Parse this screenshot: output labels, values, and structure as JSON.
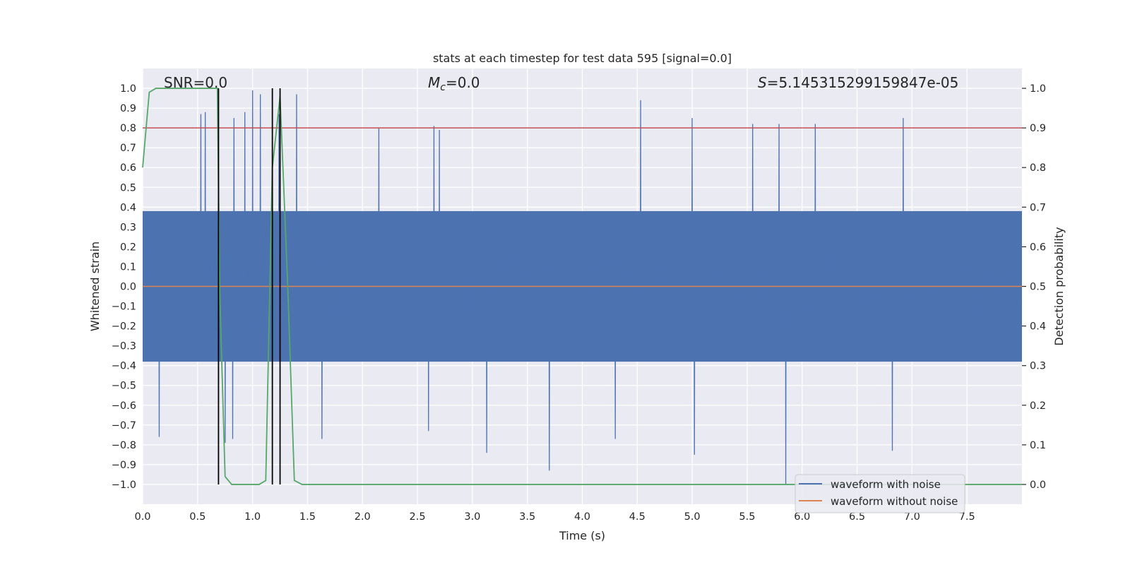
{
  "chart_data": {
    "type": "line",
    "title": "stats at each timestep for test data 595 [signal=0.0]",
    "xlabel": "Time (s)",
    "ylabel_left": "Whitened strain",
    "ylabel_right": "Detection probability",
    "xlim": [
      0.0,
      8.0
    ],
    "ylim_left": [
      -1.1,
      1.1
    ],
    "ylim_right": [
      -0.05,
      1.05
    ],
    "xticks": [
      "0.0",
      "0.5",
      "1.0",
      "1.5",
      "2.0",
      "2.5",
      "3.0",
      "3.5",
      "4.0",
      "4.5",
      "5.0",
      "5.5",
      "6.0",
      "6.5",
      "7.0",
      "7.5"
    ],
    "yticks_left": [
      "1.0",
      "0.9",
      "0.8",
      "0.7",
      "0.6",
      "0.5",
      "0.4",
      "0.3",
      "0.2",
      "0.1",
      "0.0",
      "−0.1",
      "−0.2",
      "−0.3",
      "−0.4",
      "−0.5",
      "−0.6",
      "−0.7",
      "−0.8",
      "−0.9",
      "−1.0"
    ],
    "yticks_right": [
      "1.0",
      "0.9",
      "0.8",
      "0.7",
      "0.6",
      "0.5",
      "0.4",
      "0.3",
      "0.2",
      "0.1",
      "0.0"
    ],
    "annotations": {
      "snr": "SNR=0.0",
      "mc_symbol": "M",
      "mc_sub": "c",
      "mc_value": "=0.0",
      "s_symbol": "S",
      "s_value": "=5.145315299159847e-05"
    },
    "threshold": {
      "value_right": 0.9,
      "color": "#c44e52"
    },
    "vertical_lines_x": [
      0.69,
      1.18,
      1.25
    ],
    "detection_probability": {
      "name": "detection probability",
      "color": "#55a868",
      "x": [
        0.0,
        0.06,
        0.12,
        0.2,
        0.4,
        0.6,
        0.68,
        0.7,
        0.75,
        0.81,
        0.9,
        1.06,
        1.12,
        1.18,
        1.25,
        1.32,
        1.38,
        1.45,
        2.0,
        4.0,
        6.0,
        8.0
      ],
      "y": [
        0.8,
        0.99,
        1.0,
        1.0,
        1.0,
        1.0,
        1.0,
        0.5,
        0.02,
        0.0,
        0.0,
        0.0,
        0.01,
        0.8,
        0.98,
        0.5,
        0.01,
        0.0,
        0.0,
        0.0,
        0.0,
        0.0
      ]
    },
    "series": [
      {
        "name": "waveform with noise",
        "color": "#4c72b0",
        "style": "dense noise, core about ±0.4, peaks up to about ±0.9"
      },
      {
        "name": "waveform without noise",
        "color": "#dd8452",
        "values": "0.0 everywhere"
      }
    ],
    "noise_peaks": [
      {
        "x": 1.0,
        "y": 0.99
      },
      {
        "x": 1.07,
        "y": 0.97
      },
      {
        "x": 4.53,
        "y": 0.94
      },
      {
        "x": 0.69,
        "y": 0.82
      },
      {
        "x": 1.4,
        "y": 0.97
      },
      {
        "x": 0.53,
        "y": 0.87
      },
      {
        "x": 0.83,
        "y": 0.85
      },
      {
        "x": 0.57,
        "y": 0.88
      },
      {
        "x": 0.93,
        "y": 0.88
      },
      {
        "x": 1.24,
        "y": 0.87
      },
      {
        "x": 5.0,
        "y": 0.85
      },
      {
        "x": 6.92,
        "y": 0.85
      },
      {
        "x": 5.55,
        "y": 0.82
      },
      {
        "x": 6.12,
        "y": 0.82
      },
      {
        "x": 2.65,
        "y": 0.81
      },
      {
        "x": 2.15,
        "y": 0.8
      },
      {
        "x": 2.7,
        "y": 0.79
      },
      {
        "x": 5.79,
        "y": 0.82
      },
      {
        "x": 3.7,
        "y": -0.93
      },
      {
        "x": 5.85,
        "y": -1.0
      },
      {
        "x": 5.02,
        "y": -0.85
      },
      {
        "x": 6.82,
        "y": -0.83
      },
      {
        "x": 0.75,
        "y": -0.79
      },
      {
        "x": 3.13,
        "y": -0.84
      },
      {
        "x": 0.15,
        "y": -0.76
      },
      {
        "x": 2.6,
        "y": -0.73
      },
      {
        "x": 4.3,
        "y": -0.77
      },
      {
        "x": 0.82,
        "y": -0.77
      },
      {
        "x": 1.63,
        "y": -0.77
      }
    ],
    "legend": {
      "location": "lower-right",
      "entries": [
        "waveform with noise",
        "waveform without noise"
      ]
    },
    "background": "#eaeaf2",
    "grid": true
  }
}
